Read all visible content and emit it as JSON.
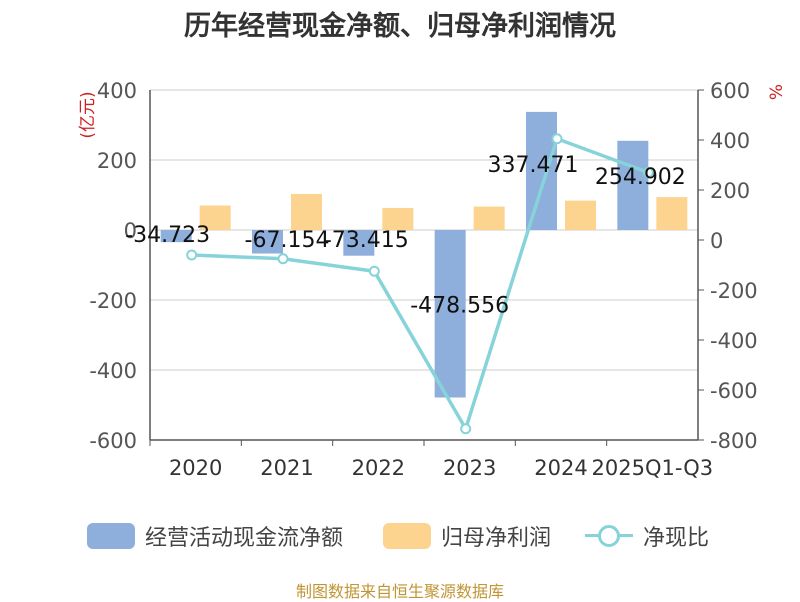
{
  "title": "历年经营现金净额、归母净利润情况",
  "source": "制图数据来自恒生聚源数据库",
  "chart_data": {
    "type": "bar",
    "categories": [
      "2020",
      "2021",
      "2022",
      "2023",
      "2024",
      "2025Q1-Q3"
    ],
    "series": [
      {
        "name": "经营活动现金流净额",
        "type": "bar",
        "axis": "left",
        "color": "#8eaedb",
        "values": [
          -34.723,
          -67.154,
          -73.415,
          -478.556,
          337.471,
          254.902
        ],
        "labels": [
          "-34.723",
          "-67.154",
          "-73.415",
          "-478.556",
          "337.471",
          "254.902"
        ]
      },
      {
        "name": "归母净利润",
        "type": "bar",
        "axis": "left",
        "color": "#fcd48f",
        "values": [
          70,
          103,
          63,
          67,
          84,
          94
        ]
      },
      {
        "name": "净现比",
        "type": "line",
        "axis": "right",
        "color": "#86d3d9",
        "values": [
          -60,
          -75,
          -125,
          -755,
          405,
          270
        ]
      }
    ],
    "ylabel": "(亿元)",
    "y2label": "%",
    "ylim": [
      -600,
      400
    ],
    "y2lim": [
      -800,
      600
    ],
    "yticks": [
      "400",
      "200",
      "0",
      "-200",
      "-400",
      "-600"
    ],
    "y2ticks": [
      "600",
      "400",
      "200",
      "0",
      "-200",
      "-400",
      "-600",
      "-800"
    ],
    "grid": true,
    "legend_position": "bottom"
  }
}
